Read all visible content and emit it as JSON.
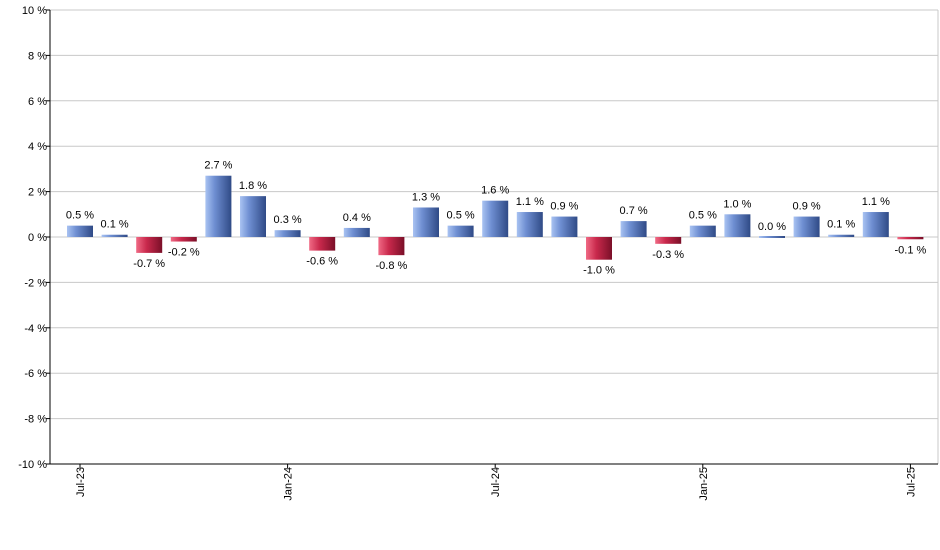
{
  "chart_data": {
    "type": "bar",
    "x_tick_labels": [
      "Jul-23",
      "Jan-24",
      "Jul-24",
      "Jan-25",
      "Jul-25"
    ],
    "y_tick_labels": [
      "10 %",
      "8 %",
      "6 %",
      "4 %",
      "2 %",
      "0 %",
      "-2 %",
      "-4 %",
      "-6 %",
      "-8 %",
      "-10 %"
    ],
    "ylim": [
      -10,
      10
    ],
    "grid": true,
    "legend": "none",
    "series": [
      {
        "values": [
          0.5,
          0.1,
          -0.7,
          -0.2,
          2.7,
          1.8,
          0.3,
          -0.6,
          0.4,
          -0.8,
          1.3,
          0.5,
          1.6,
          1.1,
          0.9,
          -1.0,
          0.7,
          -0.3,
          0.5,
          1.0,
          0.0,
          0.9,
          0.1,
          1.1,
          -0.1
        ],
        "labels": [
          "0.5 %",
          "0.1 %",
          "-0.7 %",
          "-0.2 %",
          "2.7 %",
          "1.8 %",
          "0.3 %",
          "-0.6 %",
          "0.4 %",
          "-0.8 %",
          "1.3 %",
          "0.5 %",
          "1.6 %",
          "1.1 %",
          "0.9 %",
          "-1.0 %",
          "0.7 %",
          "-0.3 %",
          "0.5 %",
          "1.0 %",
          "0.0 %",
          "0.9 %",
          "0.1 %",
          "1.1 %",
          "-0.1 %"
        ]
      }
    ],
    "colors": {
      "positive_light": "#a9c3f2",
      "positive_mid": "#6f8fd2",
      "positive_dark": "#2f4a86",
      "negative_light": "#f06a85",
      "negative_mid": "#c9294c",
      "negative_dark": "#7a0f28",
      "grid": "#c8c8c8",
      "axis": "#000000"
    }
  }
}
